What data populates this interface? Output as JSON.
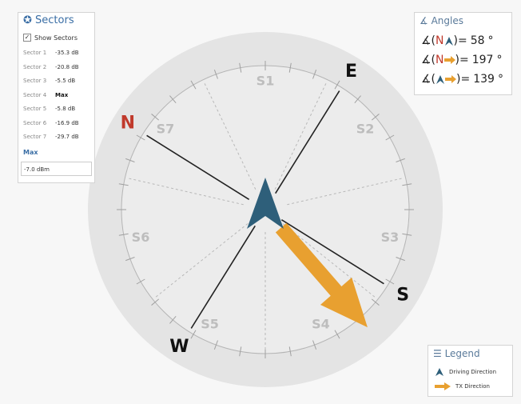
{
  "sectors_panel": {
    "title": "Sectors",
    "show_sectors": "Show Sectors",
    "rows": [
      {
        "name": "Sector 1",
        "value": "-35.3 dB"
      },
      {
        "name": "Sector 2",
        "value": "-20.8 dB"
      },
      {
        "name": "Sector 3",
        "value": "-5.5 dB"
      },
      {
        "name": "Sector 4",
        "value": "Max"
      },
      {
        "name": "Sector 5",
        "value": "-5.8 dB"
      },
      {
        "name": "Sector 6",
        "value": "-16.9 dB"
      },
      {
        "name": "Sector 7",
        "value": "-29.7 dB"
      }
    ],
    "max_label": "Max",
    "max_value": "-7.0 dBm"
  },
  "angles_panel": {
    "title": "Angles",
    "open": "∡(",
    "close": ")=",
    "unit": "°",
    "rows": [
      {
        "from": "N",
        "value": 58
      },
      {
        "from": "N",
        "value": 197
      },
      {
        "value": 139
      }
    ]
  },
  "compass": {
    "cardinals": [
      "N",
      "E",
      "S",
      "W"
    ],
    "sectors": [
      "S1",
      "S2",
      "S3",
      "S4",
      "S5",
      "S6",
      "S7"
    ]
  },
  "legend": {
    "title": "Legend",
    "driving": "Driving Direction",
    "tx": "TX Direction"
  }
}
